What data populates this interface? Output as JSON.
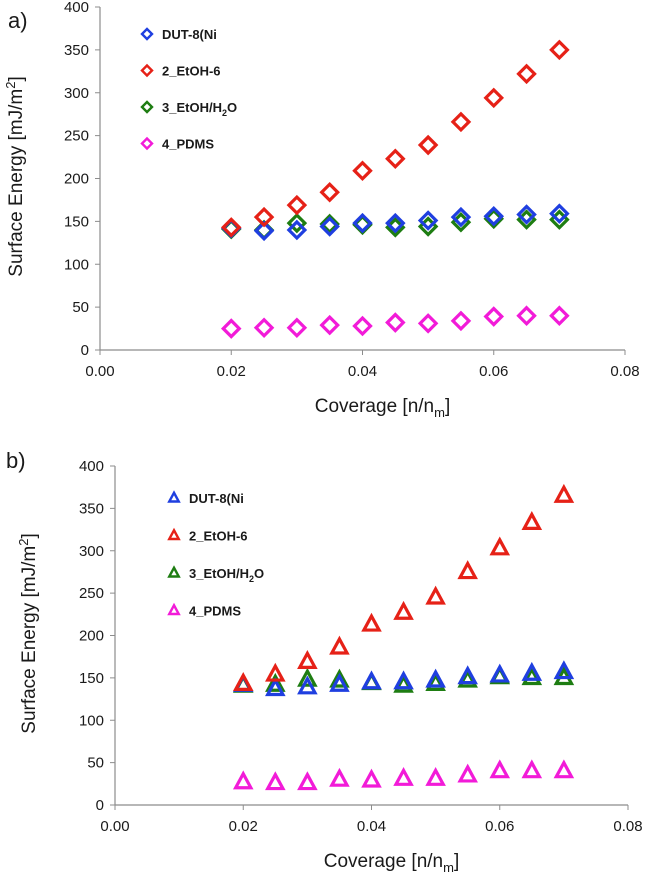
{
  "chart_data": [
    {
      "type": "scatter",
      "panel_label": "a)",
      "marker": "diamond",
      "xlabel": "Coverage [n/n",
      "xlabel_sub": "m",
      "xlabel_end": "]",
      "ylabel": "Surface Energy [mJ/m",
      "ylabel_sup": "2",
      "ylabel_end": "]",
      "xlim": [
        0,
        0.08
      ],
      "ylim": [
        0,
        400
      ],
      "xticks": [
        "0.00",
        "0.02",
        "0.04",
        "0.06",
        "0.08"
      ],
      "yticks": [
        "0",
        "50",
        "100",
        "150",
        "200",
        "250",
        "300",
        "350",
        "400"
      ],
      "legend_position": "top-left",
      "x": [
        0.02,
        0.025,
        0.03,
        0.035,
        0.04,
        0.045,
        0.05,
        0.055,
        0.06,
        0.065,
        0.07
      ],
      "series": [
        {
          "name": "DUT-8(Ni",
          "color": "#1f3fe0",
          "values": [
            142,
            139,
            140,
            144,
            148,
            148,
            151,
            155,
            156,
            158,
            159
          ]
        },
        {
          "name": "2_EtOH-6",
          "color": "#e62117",
          "values": [
            143,
            155,
            169,
            184,
            209,
            223,
            239,
            266,
            294,
            322,
            350
          ]
        },
        {
          "name": "3_EtOH/H2O",
          "name_main": "3_EtOH/H",
          "name_sub": "2",
          "name_end": "O",
          "color": "#1e7d12",
          "values": [
            141,
            140,
            148,
            147,
            146,
            143,
            144,
            149,
            153,
            152,
            152
          ]
        },
        {
          "name": "4_PDMS",
          "color": "#f21bd8",
          "values": [
            25,
            26,
            26,
            29,
            28,
            32,
            31,
            34,
            39,
            40,
            40
          ]
        }
      ]
    },
    {
      "type": "scatter",
      "panel_label": "b)",
      "marker": "triangle",
      "xlabel": "Coverage [n/n",
      "xlabel_sub": "m",
      "xlabel_end": "]",
      "ylabel": "Surface Energy [mJ/m",
      "ylabel_sup": "2",
      "ylabel_end": "]",
      "xlim": [
        0,
        0.08
      ],
      "ylim": [
        0,
        400
      ],
      "xticks": [
        "0.00",
        "0.02",
        "0.04",
        "0.06",
        "0.08"
      ],
      "yticks": [
        "0",
        "50",
        "100",
        "150",
        "200",
        "250",
        "300",
        "350",
        "400"
      ],
      "legend_position": "top-left",
      "x": [
        0.02,
        0.025,
        0.03,
        0.035,
        0.04,
        0.045,
        0.05,
        0.055,
        0.06,
        0.065,
        0.07
      ],
      "series": [
        {
          "name": "DUT-8(Ni",
          "color": "#1f3fe0",
          "values": [
            142,
            137,
            139,
            142,
            145,
            145,
            147,
            151,
            153,
            155,
            157
          ]
        },
        {
          "name": "2_EtOH-6",
          "color": "#e62117",
          "values": [
            143,
            154,
            169,
            186,
            213,
            227,
            245,
            275,
            303,
            333,
            365
          ]
        },
        {
          "name": "3_EtOH/H2O",
          "name_main": "3_EtOH/H",
          "name_sub": "2",
          "name_end": "O",
          "color": "#1e7d12",
          "values": [
            141,
            142,
            148,
            147,
            144,
            141,
            143,
            147,
            151,
            150,
            150
          ]
        },
        {
          "name": "4_PDMS",
          "color": "#f21bd8",
          "values": [
            27,
            26,
            26,
            30,
            29,
            31,
            31,
            35,
            40,
            40,
            40
          ]
        }
      ]
    }
  ]
}
